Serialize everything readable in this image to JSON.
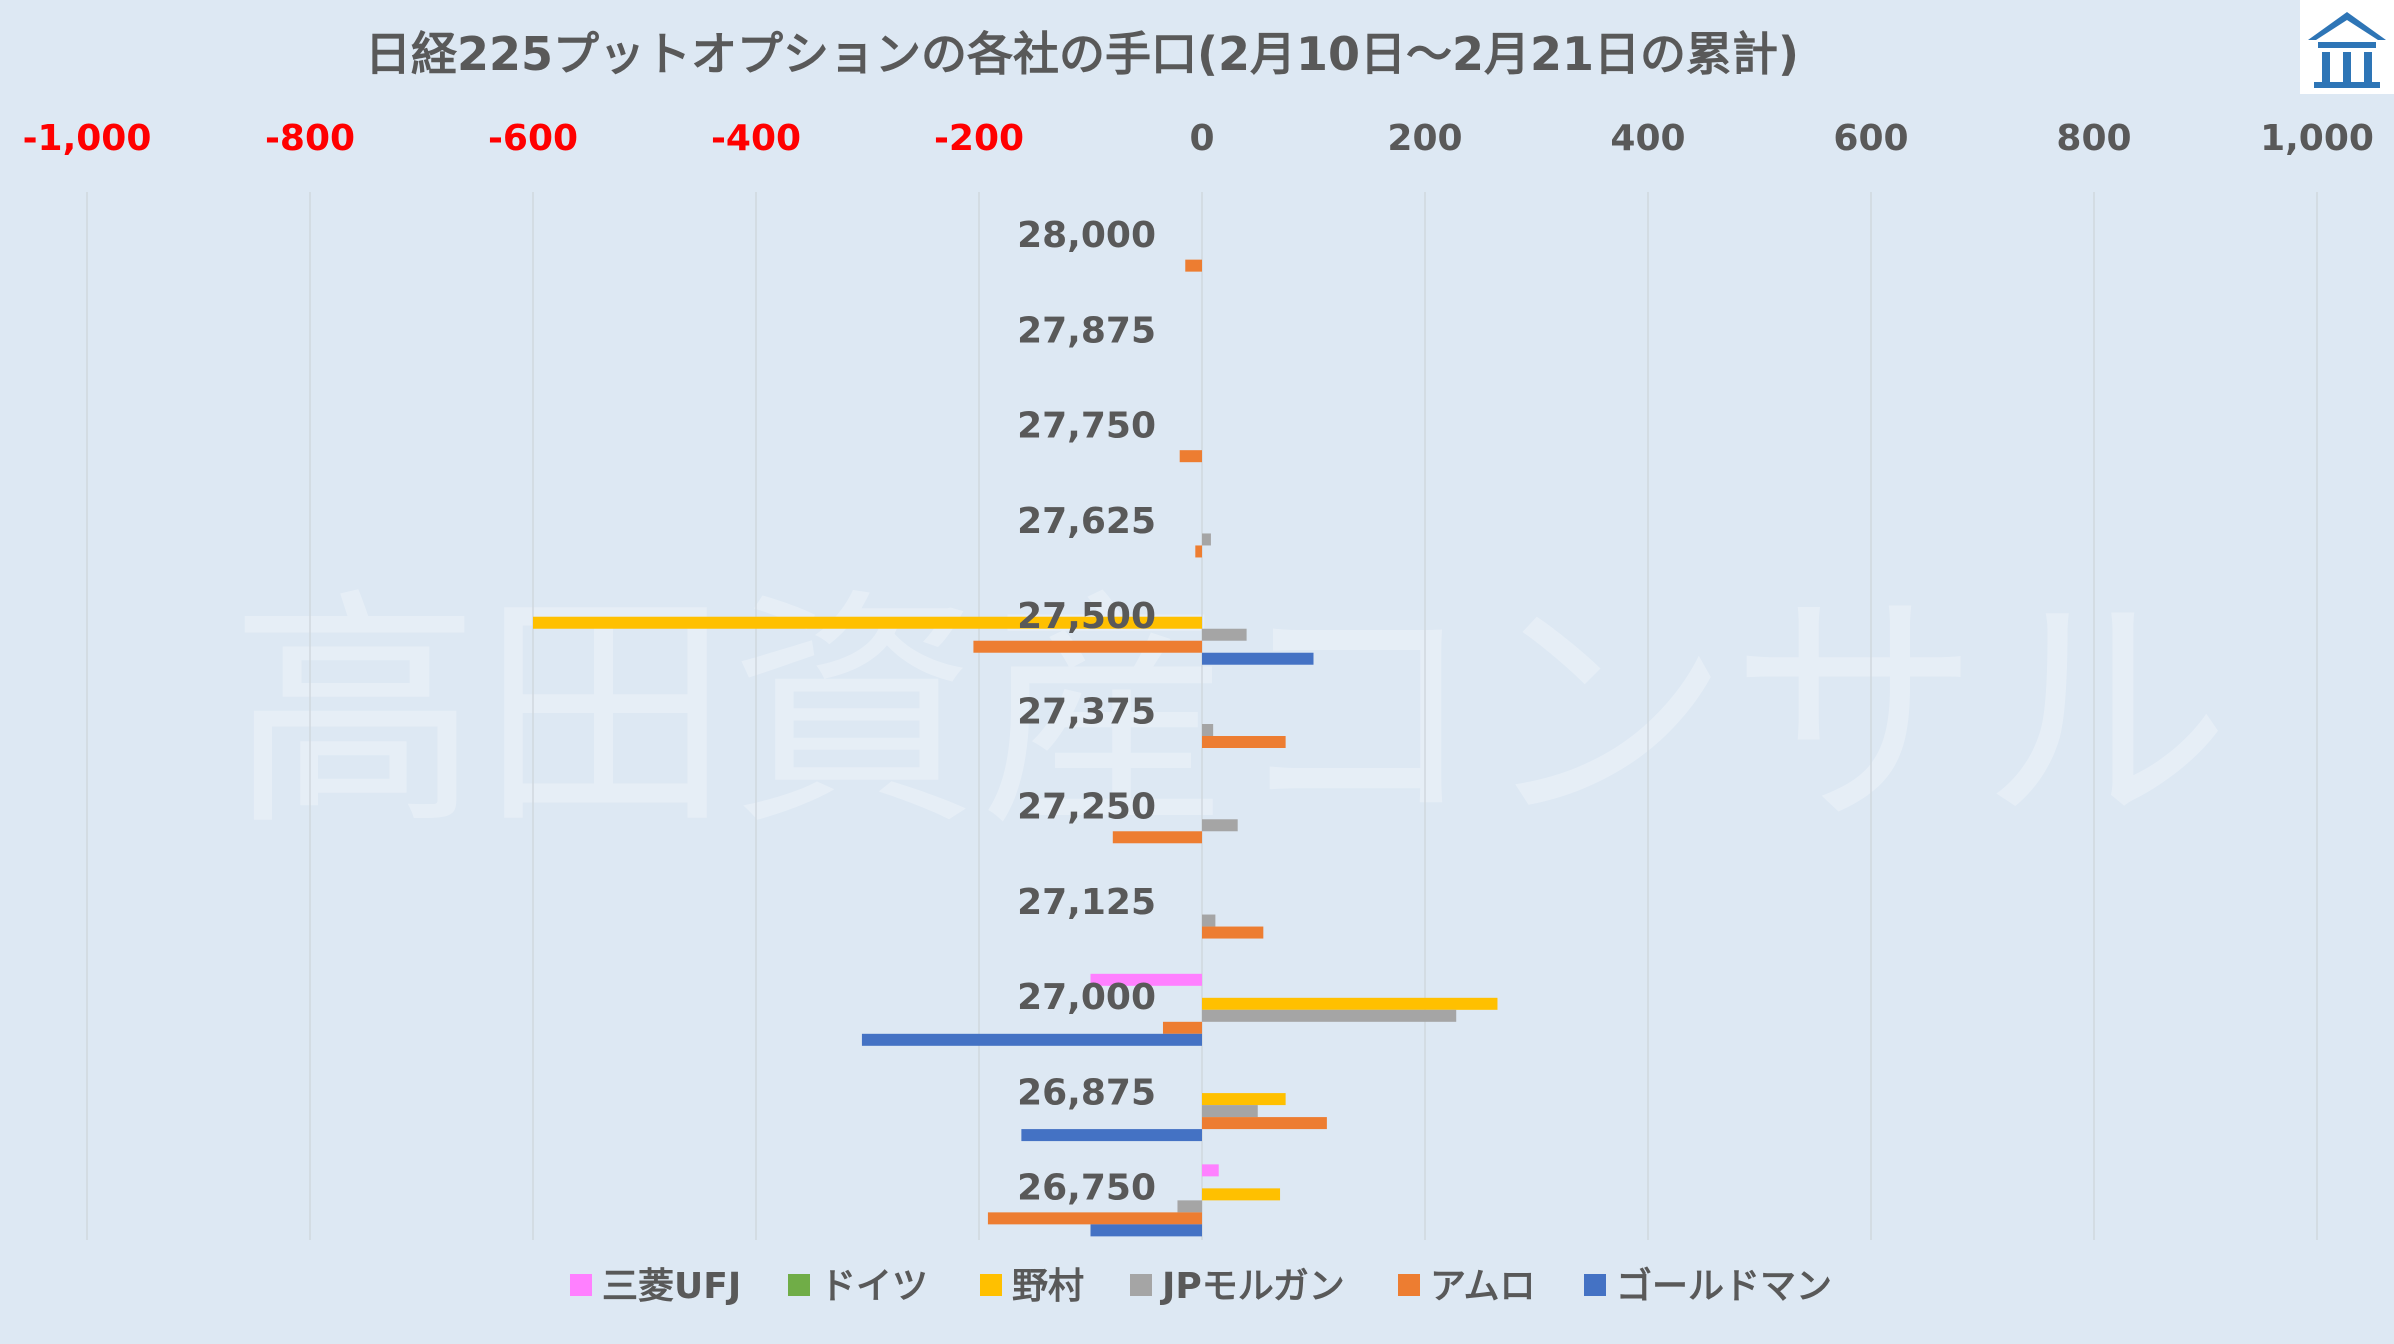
{
  "chart_data": {
    "type": "bar",
    "orientation": "horizontal",
    "title": "日経225プットオプションの各社の手口(2月10日～2月21日の累計)",
    "watermark": "高田資産コンサル",
    "xlim": [
      -1000,
      1000
    ],
    "xticks": [
      -1000,
      -800,
      -600,
      -400,
      -200,
      0,
      200,
      400,
      600,
      800,
      1000
    ],
    "xtick_labels": [
      "-1,000",
      "-800",
      "-600",
      "-400",
      "-200",
      "0",
      "200",
      "400",
      "600",
      "800",
      "1,000"
    ],
    "negative_tick_color": "#ff0000",
    "positive_tick_color": "#595959",
    "grid": true,
    "legend_position": "bottom",
    "categories": [
      "28,000",
      "27,875",
      "27,750",
      "27,625",
      "27,500",
      "27,375",
      "27,250",
      "27,125",
      "27,000",
      "26,875",
      "26,750"
    ],
    "series": [
      {
        "name": "三菱UFJ",
        "color": "#ff80ff",
        "values": [
          0,
          0,
          0,
          0,
          0,
          0,
          0,
          0,
          -100,
          0,
          15
        ]
      },
      {
        "name": "ドイツ",
        "color": "#70ad47",
        "values": [
          0,
          0,
          0,
          0,
          0,
          0,
          0,
          0,
          0,
          0,
          0
        ]
      },
      {
        "name": "野村",
        "color": "#ffc000",
        "values": [
          0,
          0,
          0,
          0,
          -600,
          0,
          0,
          0,
          265,
          75,
          70
        ]
      },
      {
        "name": "JPモルガン",
        "color": "#a5a5a5",
        "values": [
          0,
          0,
          0,
          8,
          40,
          10,
          32,
          12,
          228,
          50,
          -22
        ]
      },
      {
        "name": "アムロ",
        "color": "#ed7d31",
        "values": [
          -15,
          0,
          -20,
          -6,
          -205,
          75,
          -80,
          55,
          -35,
          112,
          -192
        ]
      },
      {
        "name": "ゴールドマン",
        "color": "#4472c4",
        "values": [
          0,
          0,
          0,
          0,
          100,
          0,
          0,
          0,
          -305,
          -162,
          -100
        ]
      }
    ]
  }
}
